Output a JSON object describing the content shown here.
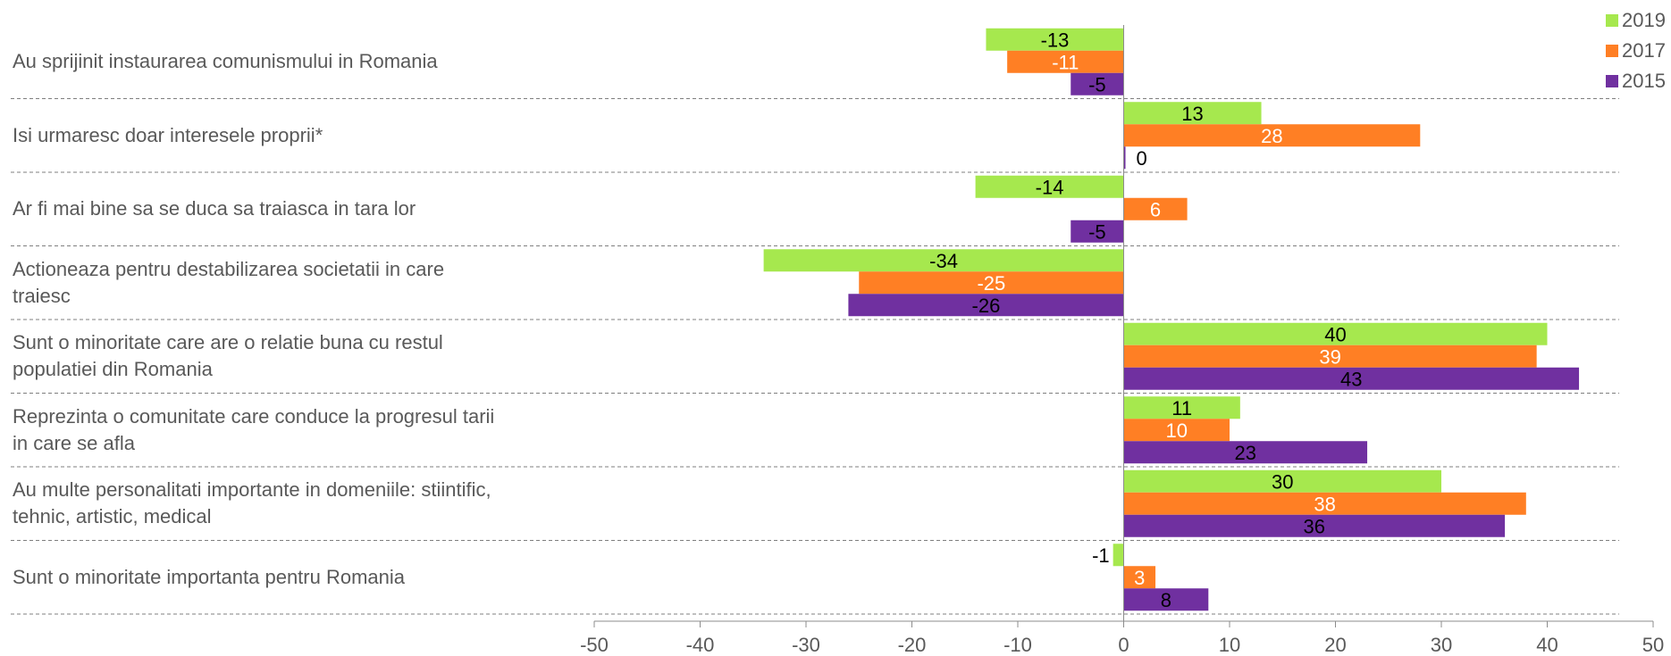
{
  "chart_data": {
    "type": "bar",
    "orientation": "horizontal",
    "categories": [
      "Au sprijinit instaurarea comunismului in Romania",
      "Isi urmaresc doar interesele proprii*",
      "Ar fi mai bine sa se duca sa traiasca in tara lor",
      "Actioneaza pentru destabilizarea societatii in care traiesc",
      "Sunt o minoritate care are o relatie buna cu restul populatiei din Romania",
      "Reprezinta o comunitate care conduce la progresul tarii in care se afla",
      "Au multe personalitati importante in domeniile: stiintific, tehnic, artistic, medical",
      "Sunt o minoritate importanta pentru Romania"
    ],
    "category_lines": [
      [
        "Au sprijinit instaurarea comunismului in Romania"
      ],
      [
        "Isi urmaresc doar interesele proprii*"
      ],
      [
        "Ar fi mai bine sa se duca sa traiasca in tara lor"
      ],
      [
        "Actioneaza pentru destabilizarea societatii in care",
        "traiesc"
      ],
      [
        "Sunt o minoritate care are o relatie buna cu restul",
        "populatiei din Romania"
      ],
      [
        "Reprezinta o comunitate care conduce la progresul tarii",
        "in care se afla"
      ],
      [
        "Au multe personalitati importante in domeniile: stiintific,",
        "tehnic, artistic, medical"
      ],
      [
        "Sunt o minoritate importanta pentru Romania"
      ]
    ],
    "series": [
      {
        "name": "2019",
        "color": "#a6e84e",
        "label_color": "#000000",
        "values": [
          -13,
          13,
          -14,
          -34,
          40,
          11,
          30,
          -1
        ]
      },
      {
        "name": "2017",
        "color": "#ff7f24",
        "label_color": "#ffffff",
        "values": [
          -11,
          28,
          6,
          -25,
          39,
          10,
          38,
          3
        ]
      },
      {
        "name": "2015",
        "color": "#7030a0",
        "label_color": "#000000",
        "values": [
          -5,
          0,
          -5,
          -26,
          43,
          23,
          36,
          8
        ]
      }
    ],
    "xlim": [
      -50,
      50
    ],
    "xticks": [
      -50,
      -40,
      -30,
      -20,
      -10,
      0,
      10,
      20,
      30,
      40,
      50
    ],
    "legend_order": [
      "2019",
      "2017",
      "2015"
    ],
    "legend_position": "top-right",
    "gridlines": "dashed-category-separators",
    "title": "",
    "xlabel": "",
    "ylabel": ""
  }
}
